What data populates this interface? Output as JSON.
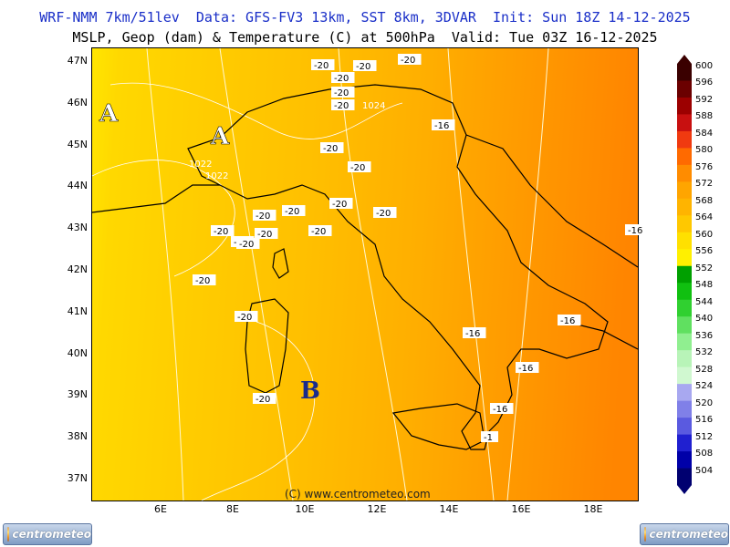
{
  "header": {
    "line1": "WRF-NMM 7km/51lev  Data: GFS-FV3 13km, SST 8km, 3DVAR  Init: Sun 18Z 14-12-2025",
    "line2": "MSLP, Geop (dam) & Temperature (C) at 500hPa  Valid: Tue 03Z 16-12-2025"
  },
  "copyright": "(C) www.centrometeo.com",
  "logo_text": "centrometeo",
  "axes": {
    "lat_ticks": [
      "47N",
      "46N",
      "45N",
      "44N",
      "43N",
      "42N",
      "41N",
      "40N",
      "39N",
      "38N",
      "37N"
    ],
    "lon_ticks": [
      "6E",
      "8E",
      "10E",
      "12E",
      "14E",
      "16E",
      "18E"
    ]
  },
  "pressure_centers": [
    {
      "letter": "A",
      "color": "#ffffff"
    },
    {
      "letter": "A",
      "color": "#ffffff"
    },
    {
      "letter": "B",
      "color": "#1a2b8c"
    }
  ],
  "isobar_labels": [
    "1022",
    "1022",
    "1024"
  ],
  "temp_labels": [
    "-20",
    "-20",
    "-20",
    "-20",
    "-20",
    "-20",
    "-20",
    "-20",
    "-20",
    "-20",
    "-20",
    "-20",
    "-20",
    "-20",
    "-20",
    "-20",
    "-20",
    "-20",
    "-20",
    "-20",
    "-16",
    "-16",
    "-16",
    "-16",
    "-16",
    "-16",
    "-1"
  ],
  "legend": {
    "values": [
      "600",
      "596",
      "592",
      "588",
      "584",
      "580",
      "576",
      "572",
      "568",
      "564",
      "560",
      "556",
      "552",
      "548",
      "544",
      "540",
      "536",
      "532",
      "528",
      "524",
      "520",
      "516",
      "512",
      "508",
      "504"
    ],
    "colors": [
      "#3a0000",
      "#6b0000",
      "#9c0000",
      "#c81010",
      "#f03a10",
      "#ff6a00",
      "#ff8c00",
      "#ffa500",
      "#ffb400",
      "#ffc800",
      "#ffe000",
      "#fff000",
      "#00a000",
      "#10c010",
      "#30d030",
      "#60e060",
      "#90ef90",
      "#b8f4b8",
      "#d0f8d0",
      "#a8a8f0",
      "#8080e8",
      "#5a5ae0",
      "#2020d0",
      "#0000a8",
      "#000070"
    ]
  }
}
